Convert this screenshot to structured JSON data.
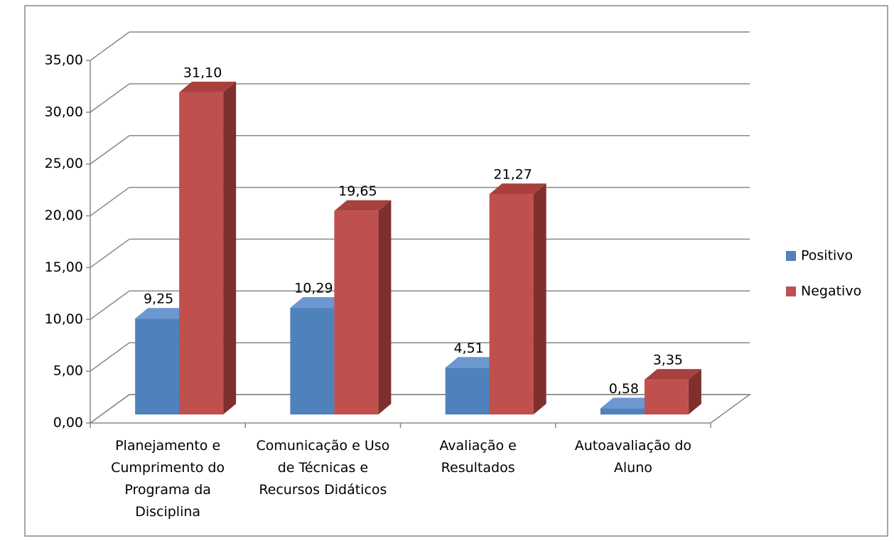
{
  "chart_data": {
    "type": "bar3d",
    "categories": [
      "Planejamento e Cumprimento do Programa da Disciplina",
      "Comunicação e Uso de Técnicas e Recursos Didáticos",
      "Avaliação e Resultados",
      "Autoavaliação do Aluno"
    ],
    "series": [
      {
        "name": "Positivo",
        "color": "#4f81bd",
        "values": [
          9.25,
          10.29,
          4.51,
          0.58
        ],
        "value_labels": [
          "9,25",
          "10,29",
          "4,51",
          "0,58"
        ]
      },
      {
        "name": "Negativo",
        "color": "#c0504d",
        "values": [
          31.1,
          19.65,
          21.27,
          3.35
        ],
        "value_labels": [
          "31,10",
          "19,65",
          "21,27",
          "3,35"
        ]
      }
    ],
    "ylim": [
      0,
      35
    ],
    "yticks": [
      {
        "value": 0,
        "label": "0,00"
      },
      {
        "value": 5,
        "label": "5,00"
      },
      {
        "value": 10,
        "label": "10,00"
      },
      {
        "value": 15,
        "label": "15,00"
      },
      {
        "value": 20,
        "label": "20,00"
      },
      {
        "value": 25,
        "label": "25,00"
      },
      {
        "value": 30,
        "label": "30,00"
      },
      {
        "value": 35,
        "label": "35,00"
      }
    ],
    "grid": true,
    "legend": "right"
  }
}
